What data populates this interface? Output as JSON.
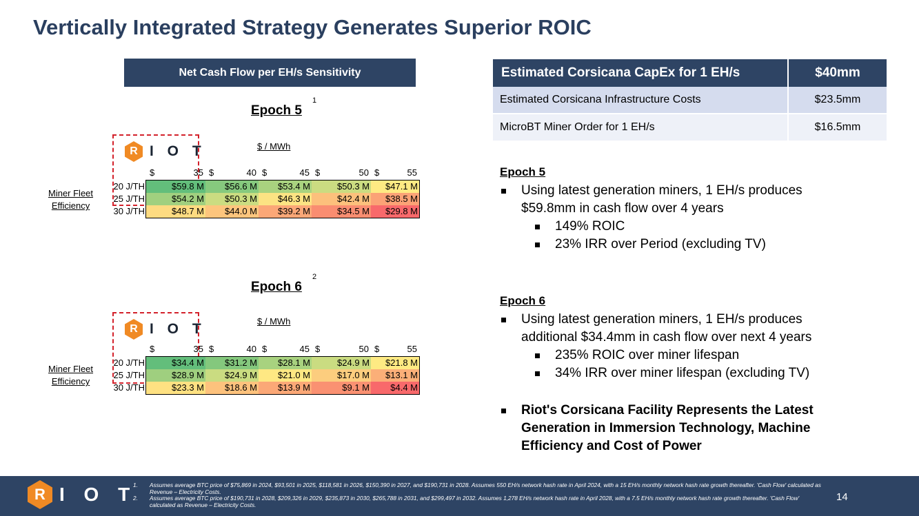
{
  "title": "Vertically Integrated Strategy Generates Superior ROIC",
  "sensitivity": {
    "header": "Net Cash Flow per EH/s Sensitivity",
    "logo_text": "I O T",
    "logo_letter": "R",
    "unit_label": "$ / MWh",
    "row_axis_label_1": "Miner Fleet",
    "row_axis_label_2": "Efficiency",
    "price_columns": [
      {
        "cur": "$",
        "val": "35"
      },
      {
        "cur": "$",
        "val": "40"
      },
      {
        "cur": "$",
        "val": "45"
      },
      {
        "cur": "$",
        "val": "50"
      },
      {
        "cur": "$",
        "val": "55"
      }
    ],
    "row_labels": [
      "20 J/TH",
      "25 J/TH",
      "30 J/TH"
    ],
    "epoch5": {
      "title": "Epoch 5",
      "footnote": "1",
      "rows": [
        [
          "$59.8 M",
          "$56.6 M",
          "$53.4 M",
          "$50.3 M",
          "$47.1 M"
        ],
        [
          "$54.2 M",
          "$50.3 M",
          "$46.3 M",
          "$42.4 M",
          "$38.5 M"
        ],
        [
          "$48.7 M",
          "$44.0 M",
          "$39.2 M",
          "$34.5 M",
          "$29.8 M"
        ]
      ],
      "colors": [
        [
          "#63be7b",
          "#86c97e",
          "#a9d27f",
          "#cbdc81",
          "#feea83"
        ],
        [
          "#a1d07f",
          "#cbdc81",
          "#fce383",
          "#fcc07c",
          "#fba276"
        ],
        [
          "#fedb81",
          "#fdc57d",
          "#fba777",
          "#f98d71",
          "#f8696b"
        ]
      ]
    },
    "epoch6": {
      "title": "Epoch 6",
      "footnote": "2",
      "rows": [
        [
          "$34.4 M",
          "$31.2 M",
          "$28.1 M",
          "$24.9 M",
          "$21.8 M"
        ],
        [
          "$28.9 M",
          "$24.9 M",
          "$21.0 M",
          "$17.0 M",
          "$13.1 M"
        ],
        [
          "$23.3 M",
          "$18.6 M",
          "$13.9 M",
          "$9.1 M",
          "$4.4 M"
        ]
      ],
      "colors": [
        [
          "#63be7b",
          "#84c87d",
          "#a8d27f",
          "#cadc81",
          "#feea83"
        ],
        [
          "#9fcf7f",
          "#cadc81",
          "#fee883",
          "#fccd7e",
          "#fbaf78"
        ],
        [
          "#fee182",
          "#fdc27d",
          "#fba877",
          "#fa9172",
          "#f8696b"
        ]
      ]
    }
  },
  "capex": {
    "header_label": "Estimated Corsicana CapEx for 1 EH/s",
    "header_value": "$40mm",
    "rows": [
      {
        "label": "Estimated Corsicana Infrastructure Costs",
        "value": "$23.5mm"
      },
      {
        "label": "MicroBT Miner Order for 1 EH/s",
        "value": "$16.5mm"
      }
    ]
  },
  "epoch5_text": {
    "heading": "Epoch 5",
    "bullet1": "Using latest generation miners, 1 EH/s produces $59.8mm in cash flow over 4 years",
    "sub1": "149% ROIC",
    "sub2": "23% IRR over Period (excluding TV)"
  },
  "epoch6_text": {
    "heading": "Epoch 6",
    "bullet1": "Using latest generation miners, 1 EH/s produces additional $34.4mm in cash flow over next 4 years",
    "sub1": "235% ROIC over miner lifespan",
    "sub2": "34% IRR over miner lifespan (excluding TV)"
  },
  "highlight": "Riot's Corsicana Facility Represents the Latest Generation in Immersion Technology, Machine Efficiency and Cost of Power",
  "footer": {
    "logo_letter": "R",
    "logo_text": "I O T",
    "note1_num": "1.",
    "note1": "Assumes average BTC price of $75,869 in 2024, $93,501 in 2025, $118,581 in 2026, $150,390 in 2027, and $190,731 in 2028. Assumes 550 EH/s network hash rate in April 2024, with a 15 EH/s monthly network hash rate growth thereafter. 'Cash Flow' calculated as Revenue – Electricity Costs.",
    "note2_num": "2.",
    "note2": "Assumes average BTC price of $190,731 in 2028, $209,326 in 2029, $235,873 in 2030, $265,788 in 2031, and $299,497 in 2032. Assumes 1,278 EH/s network hash rate in April 2028, with a 7.5 EH/s monthly network hash rate growth thereafter. 'Cash Flow' calculated as Revenue – Electricity Costs.",
    "page_number": "14"
  }
}
